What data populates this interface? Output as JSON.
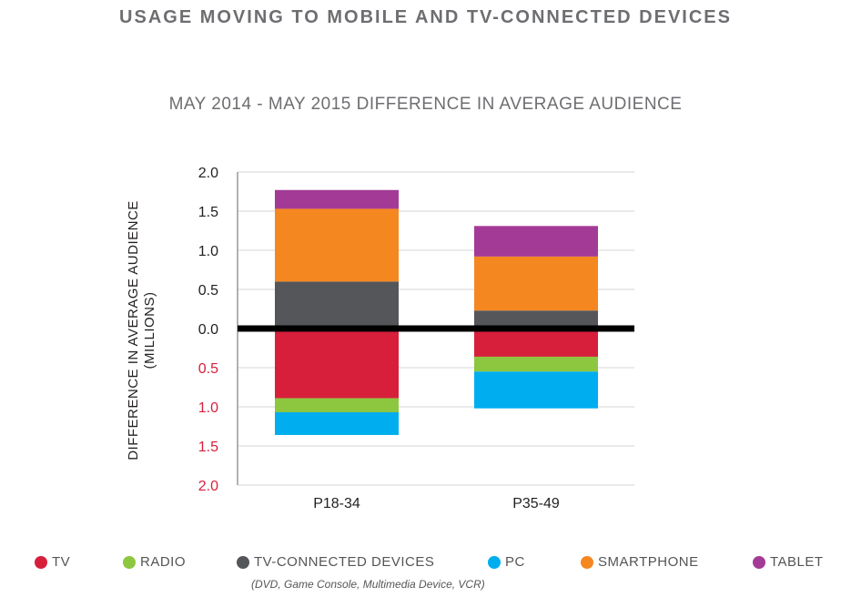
{
  "title": "USAGE MOVING TO MOBILE AND TV-CONNECTED DEVICES",
  "chart_data": {
    "type": "bar",
    "stacked": true,
    "title": "MAY 2014 - MAY 2015 DIFFERENCE IN AVERAGE AUDIENCE",
    "ylabel": "DIFFERENCE IN AVERAGE AUDIENCE",
    "ylabel_unit": "(MILLIONS)",
    "ylim": [
      -2.0,
      2.0
    ],
    "yticks": [
      2.0,
      1.5,
      1.0,
      0.5,
      0.0,
      -0.5,
      -1.0,
      -1.5,
      -2.0
    ],
    "ytick_labels": [
      "2.0",
      "1.5",
      "1.0",
      "0.5",
      "0.0",
      "0.5",
      "1.0",
      "1.5",
      "2.0"
    ],
    "negative_tick_color": "#d71f3c",
    "grid": true,
    "categories": [
      "P18-34",
      "P35-49"
    ],
    "series": [
      {
        "name": "TV",
        "color": "#d71f3c",
        "values": [
          -0.89,
          -0.36
        ]
      },
      {
        "name": "RADIO",
        "color": "#8dc63f",
        "values": [
          -0.18,
          -0.19
        ]
      },
      {
        "name": "TV-CONNECTED DEVICES",
        "color": "#54565a",
        "values": [
          0.6,
          0.23
        ]
      },
      {
        "name": "PC",
        "color": "#00aeef",
        "values": [
          -0.29,
          -0.47
        ]
      },
      {
        "name": "SMARTPHONE",
        "color": "#f58720",
        "values": [
          0.93,
          0.69
        ]
      },
      {
        "name": "TABLET",
        "color": "#a33b96",
        "values": [
          0.24,
          0.39
        ]
      }
    ],
    "legend_position": "bottom",
    "legend_note": "(DVD, Game Console, Multimedia Device, VCR)"
  }
}
